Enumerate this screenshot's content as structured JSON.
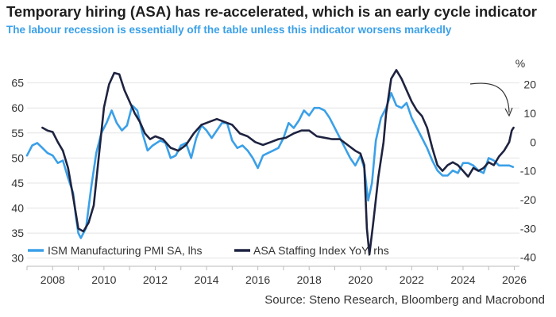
{
  "title": "Temporary hiring (ASA) has re-accelerated, which is an early cycle indicator",
  "subtitle": "The labour recession is essentially off the table unless this indicator worsens markedly",
  "source": "Source: Steno Research, Bloomberg and Macrobond",
  "colors": {
    "ism": "#3aa0e8",
    "asa": "#1e2340",
    "annotation": "#333333"
  },
  "chart_data": {
    "type": "line",
    "x_ticks": [
      "2008",
      "2010",
      "2012",
      "2014",
      "2016",
      "2018",
      "2020",
      "2022",
      "2024",
      "2026"
    ],
    "y_left": {
      "ticks": [
        "30",
        "35",
        "40",
        "45",
        "50",
        "55",
        "60",
        "65"
      ],
      "range": [
        29,
        67
      ]
    },
    "y_right": {
      "unit_label": "%",
      "ticks": [
        "-40",
        "-30",
        "-20",
        "-10",
        "0",
        "10",
        "20"
      ],
      "range": [
        -42,
        24
      ]
    },
    "legend_position": "bottom-left",
    "series": [
      {
        "name": "ISM Manufacturing PMI SA, lhs",
        "axis": "left",
        "points": [
          [
            2007.0,
            50.5
          ],
          [
            2007.2,
            52.5
          ],
          [
            2007.4,
            53
          ],
          [
            2007.6,
            52
          ],
          [
            2007.8,
            51
          ],
          [
            2008.0,
            50.5
          ],
          [
            2008.2,
            49
          ],
          [
            2008.4,
            49.5
          ],
          [
            2008.6,
            46
          ],
          [
            2008.8,
            43
          ],
          [
            2008.9,
            38.5
          ],
          [
            2009.0,
            35
          ],
          [
            2009.1,
            34
          ],
          [
            2009.3,
            36
          ],
          [
            2009.5,
            44
          ],
          [
            2009.7,
            51
          ],
          [
            2009.9,
            55
          ],
          [
            2010.1,
            57
          ],
          [
            2010.3,
            59.5
          ],
          [
            2010.5,
            57
          ],
          [
            2010.7,
            55.5
          ],
          [
            2010.9,
            56.5
          ],
          [
            2011.1,
            60.5
          ],
          [
            2011.3,
            59.5
          ],
          [
            2011.5,
            55
          ],
          [
            2011.7,
            51.5
          ],
          [
            2011.9,
            52.5
          ],
          [
            2012.2,
            53.5
          ],
          [
            2012.4,
            53
          ],
          [
            2012.6,
            50
          ],
          [
            2012.8,
            50.5
          ],
          [
            2013.0,
            52.5
          ],
          [
            2013.2,
            53
          ],
          [
            2013.4,
            50
          ],
          [
            2013.6,
            54
          ],
          [
            2013.8,
            56.5
          ],
          [
            2014.0,
            55.5
          ],
          [
            2014.2,
            54
          ],
          [
            2014.4,
            55.5
          ],
          [
            2014.6,
            57
          ],
          [
            2014.8,
            57
          ],
          [
            2015.0,
            53.5
          ],
          [
            2015.2,
            52
          ],
          [
            2015.4,
            52.5
          ],
          [
            2015.6,
            51.5
          ],
          [
            2015.8,
            50
          ],
          [
            2016.0,
            48
          ],
          [
            2016.2,
            50.5
          ],
          [
            2016.4,
            51
          ],
          [
            2016.6,
            51.5
          ],
          [
            2016.8,
            52
          ],
          [
            2017.0,
            54
          ],
          [
            2017.2,
            57
          ],
          [
            2017.4,
            56
          ],
          [
            2017.6,
            57.5
          ],
          [
            2017.8,
            59.5
          ],
          [
            2018.0,
            58.5
          ],
          [
            2018.2,
            60
          ],
          [
            2018.4,
            60
          ],
          [
            2018.6,
            59.5
          ],
          [
            2018.8,
            58
          ],
          [
            2019.0,
            56
          ],
          [
            2019.2,
            54
          ],
          [
            2019.4,
            52
          ],
          [
            2019.6,
            50
          ],
          [
            2019.8,
            48.5
          ],
          [
            2020.0,
            50.5
          ],
          [
            2020.15,
            48
          ],
          [
            2020.3,
            41.5
          ],
          [
            2020.45,
            45
          ],
          [
            2020.6,
            53.5
          ],
          [
            2020.8,
            58
          ],
          [
            2021.0,
            60
          ],
          [
            2021.2,
            63
          ],
          [
            2021.4,
            60.5
          ],
          [
            2021.6,
            60
          ],
          [
            2021.8,
            61
          ],
          [
            2022.0,
            58
          ],
          [
            2022.2,
            56
          ],
          [
            2022.4,
            54
          ],
          [
            2022.6,
            52
          ],
          [
            2022.8,
            49.5
          ],
          [
            2023.0,
            47.5
          ],
          [
            2023.2,
            46.5
          ],
          [
            2023.4,
            46.5
          ],
          [
            2023.6,
            47.5
          ],
          [
            2023.8,
            47
          ],
          [
            2024.0,
            49
          ],
          [
            2024.2,
            49
          ],
          [
            2024.4,
            48.5
          ],
          [
            2024.6,
            47.5
          ],
          [
            2024.8,
            47
          ],
          [
            2025.0,
            50
          ],
          [
            2025.2,
            49.5
          ],
          [
            2025.4,
            48.5
          ],
          [
            2025.6,
            48.5
          ],
          [
            2025.8,
            48.5
          ],
          [
            2025.95,
            48.2
          ]
        ]
      },
      {
        "name": "ASA Staffing Index YoY, rhs",
        "axis": "right",
        "points": [
          [
            2007.6,
            5
          ],
          [
            2007.8,
            4
          ],
          [
            2008.0,
            3.5
          ],
          [
            2008.2,
            0
          ],
          [
            2008.4,
            -3
          ],
          [
            2008.6,
            -9
          ],
          [
            2008.8,
            -19
          ],
          [
            2009.0,
            -30
          ],
          [
            2009.2,
            -31
          ],
          [
            2009.4,
            -28
          ],
          [
            2009.6,
            -22
          ],
          [
            2009.8,
            -5
          ],
          [
            2010.0,
            12
          ],
          [
            2010.2,
            20
          ],
          [
            2010.4,
            24
          ],
          [
            2010.6,
            23.5
          ],
          [
            2010.8,
            18
          ],
          [
            2011.0,
            14
          ],
          [
            2011.2,
            10
          ],
          [
            2011.4,
            7
          ],
          [
            2011.6,
            3
          ],
          [
            2011.8,
            1
          ],
          [
            2012.0,
            2
          ],
          [
            2012.3,
            1
          ],
          [
            2012.6,
            -2
          ],
          [
            2012.9,
            -3
          ],
          [
            2013.2,
            -1
          ],
          [
            2013.5,
            3
          ],
          [
            2013.8,
            6
          ],
          [
            2014.1,
            7
          ],
          [
            2014.4,
            8
          ],
          [
            2014.7,
            7
          ],
          [
            2015.0,
            6
          ],
          [
            2015.3,
            3
          ],
          [
            2015.6,
            2
          ],
          [
            2015.9,
            0
          ],
          [
            2016.2,
            -1
          ],
          [
            2016.5,
            0
          ],
          [
            2016.8,
            1
          ],
          [
            2017.1,
            1.5
          ],
          [
            2017.4,
            3
          ],
          [
            2017.7,
            4
          ],
          [
            2018.0,
            4
          ],
          [
            2018.3,
            2
          ],
          [
            2018.6,
            1.5
          ],
          [
            2018.9,
            1
          ],
          [
            2019.2,
            1
          ],
          [
            2019.5,
            -1
          ],
          [
            2019.8,
            -3
          ],
          [
            2020.0,
            -4
          ],
          [
            2020.15,
            -8
          ],
          [
            2020.25,
            -30
          ],
          [
            2020.35,
            -39
          ],
          [
            2020.5,
            -28
          ],
          [
            2020.7,
            -12
          ],
          [
            2020.9,
            0
          ],
          [
            2021.0,
            10
          ],
          [
            2021.2,
            22
          ],
          [
            2021.4,
            25
          ],
          [
            2021.6,
            22
          ],
          [
            2021.8,
            18
          ],
          [
            2022.0,
            14
          ],
          [
            2022.2,
            11
          ],
          [
            2022.4,
            9
          ],
          [
            2022.6,
            5
          ],
          [
            2022.8,
            -2
          ],
          [
            2023.0,
            -8
          ],
          [
            2023.2,
            -10
          ],
          [
            2023.4,
            -8
          ],
          [
            2023.6,
            -7
          ],
          [
            2023.8,
            -8
          ],
          [
            2024.0,
            -10
          ],
          [
            2024.2,
            -12
          ],
          [
            2024.4,
            -9
          ],
          [
            2024.6,
            -10
          ],
          [
            2024.8,
            -9
          ],
          [
            2025.0,
            -7
          ],
          [
            2025.2,
            -8
          ],
          [
            2025.4,
            -5
          ],
          [
            2025.6,
            -3
          ],
          [
            2025.8,
            0
          ],
          [
            2025.9,
            4
          ],
          [
            2025.97,
            5
          ]
        ]
      }
    ]
  }
}
